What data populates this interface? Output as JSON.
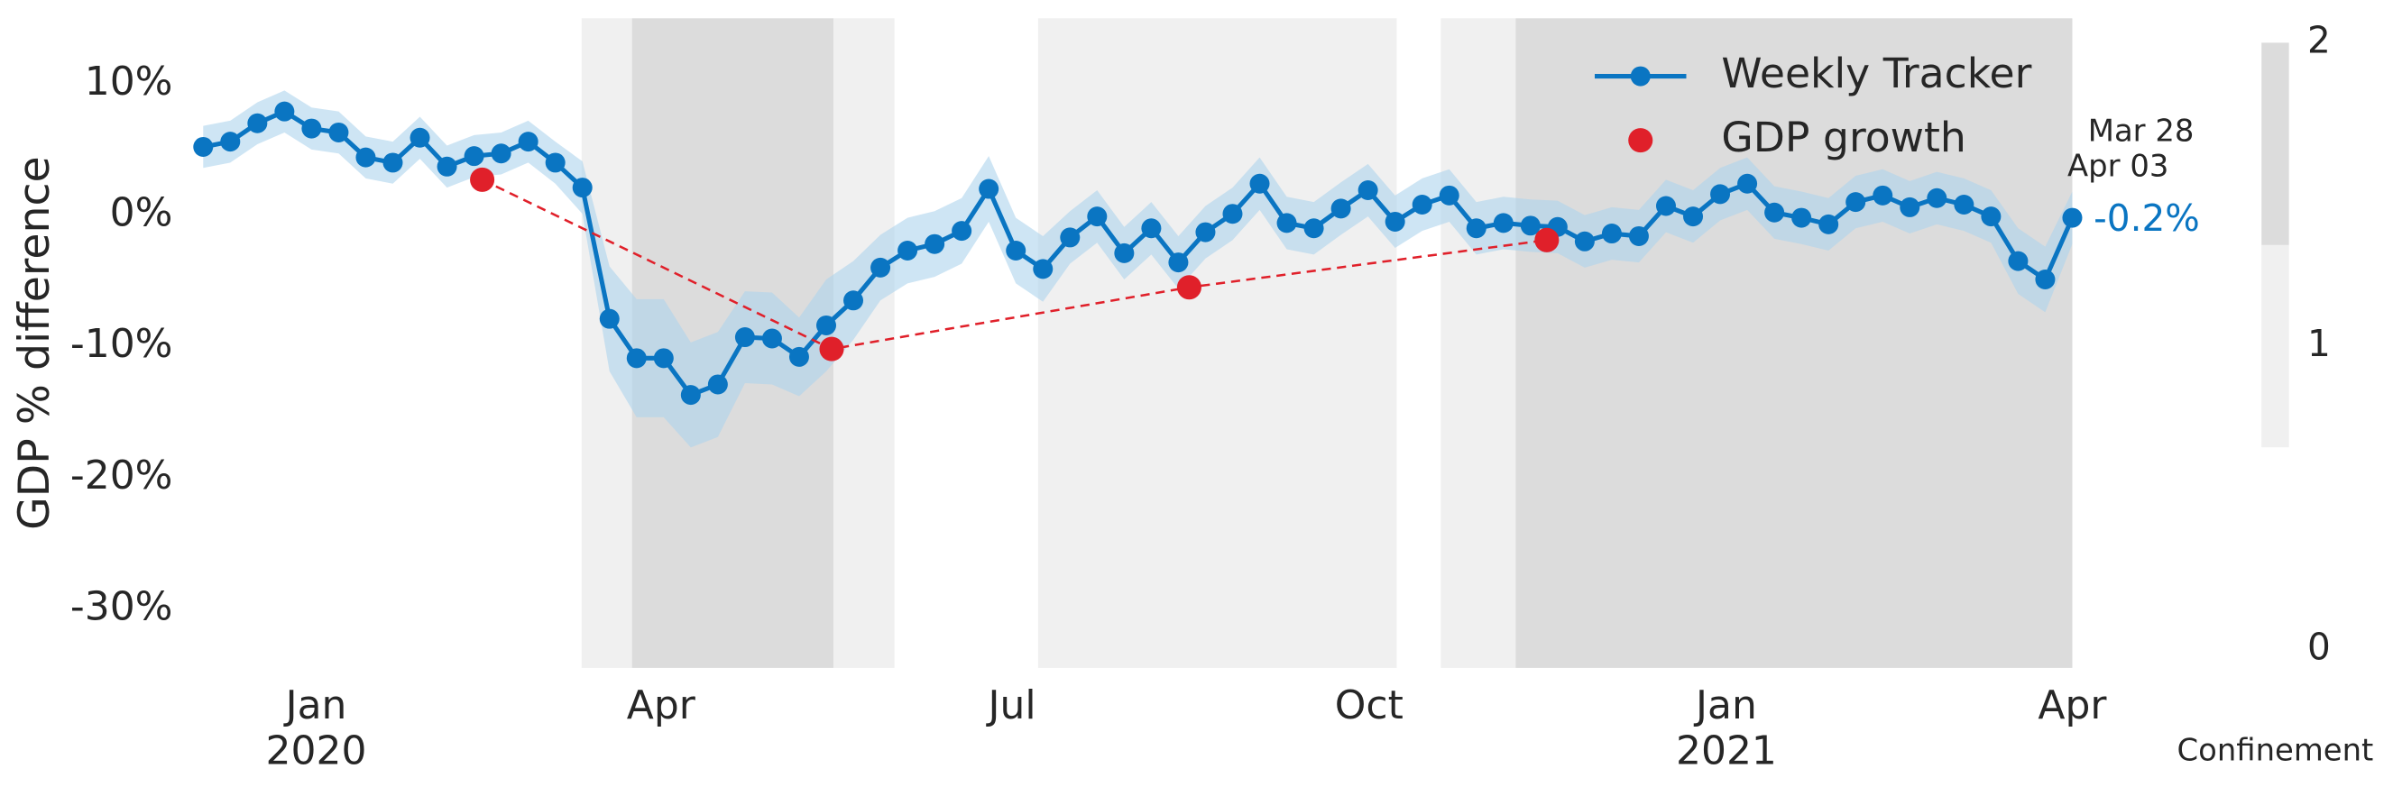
{
  "chart_data": {
    "type": "line",
    "ylabel": "GDP % difference",
    "ylim": [
      -34.5,
      15
    ],
    "yticks": [
      {
        "value": 10,
        "label": "10%"
      },
      {
        "value": 0,
        "label": "0%"
      },
      {
        "value": -10,
        "label": "-10%"
      },
      {
        "value": -20,
        "label": "-20%"
      },
      {
        "value": -30,
        "label": "-30%"
      }
    ],
    "xlim": [
      -0.45,
      69
    ],
    "xticks": [
      {
        "value": 4.17,
        "label": "Jan"
      },
      {
        "value": 16.9,
        "label": "Apr"
      },
      {
        "value": 29.86,
        "label": "Jul"
      },
      {
        "value": 43.04,
        "label": "Oct"
      },
      {
        "value": 56.23,
        "label": "Jan"
      },
      {
        "value": 69,
        "label": "Apr"
      }
    ],
    "xticks_year": [
      {
        "value": 4.17,
        "label": "2020"
      },
      {
        "value": 56.23,
        "label": "2021"
      }
    ],
    "legend": "upper right",
    "series": [
      {
        "name": "Weekly Tracker",
        "color": "#0a75c2",
        "band_color": "#aed3ec",
        "values": [
          5.2,
          5.6,
          7.0,
          7.9,
          6.6,
          6.3,
          4.4,
          4.0,
          5.9,
          3.7,
          4.5,
          4.7,
          5.6,
          4.0,
          2.1,
          -7.9,
          -10.9,
          -10.9,
          -13.7,
          -12.9,
          -9.3,
          -9.4,
          -10.8,
          -8.4,
          -6.5,
          -4.0,
          -2.7,
          -2.2,
          -1.2,
          2.0,
          -2.7,
          -4.1,
          -1.7,
          -0.1,
          -2.9,
          -1.0,
          -3.6,
          -1.3,
          0.1,
          2.4,
          -0.6,
          -1.0,
          0.5,
          1.9,
          -0.5,
          0.8,
          1.5,
          -1.0,
          -0.6,
          -0.8,
          -0.9,
          -2.0,
          -1.4,
          -1.6,
          0.7,
          -0.1,
          1.6,
          2.4,
          0.2,
          -0.2,
          -0.7,
          1.0,
          1.5,
          0.6,
          1.3,
          0.8,
          -0.1,
          -3.5,
          -4.9,
          -0.2
        ],
        "error": [
          1.6,
          1.6,
          1.6,
          1.6,
          1.6,
          1.6,
          1.6,
          1.6,
          1.6,
          1.6,
          1.6,
          1.6,
          1.6,
          1.6,
          2.0,
          4.0,
          4.5,
          4.5,
          4.0,
          4.0,
          3.5,
          3.5,
          3.0,
          3.5,
          3.0,
          2.5,
          2.5,
          2.5,
          2.5,
          2.5,
          2.5,
          2.5,
          2.0,
          2.0,
          2.0,
          2.0,
          2.0,
          2.0,
          2.0,
          2.0,
          2.0,
          2.0,
          2.0,
          2.0,
          2.0,
          2.0,
          2.0,
          2.0,
          2.0,
          2.0,
          2.0,
          2.0,
          2.0,
          2.0,
          2.0,
          2.0,
          2.0,
          2.0,
          2.0,
          2.0,
          2.0,
          2.0,
          2.0,
          2.0,
          2.0,
          2.0,
          2.0,
          2.5,
          2.5,
          2.0
        ]
      },
      {
        "name": "GDP growth",
        "color": "#e0202a",
        "x": [
          10.3,
          23.2,
          36.4,
          49.6
        ],
        "values": [
          2.7,
          -10.2,
          -5.5,
          -1.9
        ]
      }
    ],
    "confinement": [
      {
        "start": 13.97,
        "end": 15.83,
        "level": 1
      },
      {
        "start": 15.83,
        "end": 23.27,
        "level": 2
      },
      {
        "start": 23.27,
        "end": 25.52,
        "level": 1
      },
      {
        "start": 30.82,
        "end": 44.06,
        "level": 1
      },
      {
        "start": 45.69,
        "end": 48.45,
        "level": 1
      },
      {
        "start": 48.45,
        "end": 69,
        "level": 2
      }
    ],
    "colorbar": {
      "label": "Confinement",
      "lim": [
        0,
        2
      ],
      "ticks": [
        0,
        1,
        2
      ],
      "colors": [
        "#ffffff",
        "#f0f0f0",
        "#dcdcdc"
      ]
    },
    "annotations": [
      "Mar 28",
      "Apr 03",
      "-0.2%"
    ]
  }
}
